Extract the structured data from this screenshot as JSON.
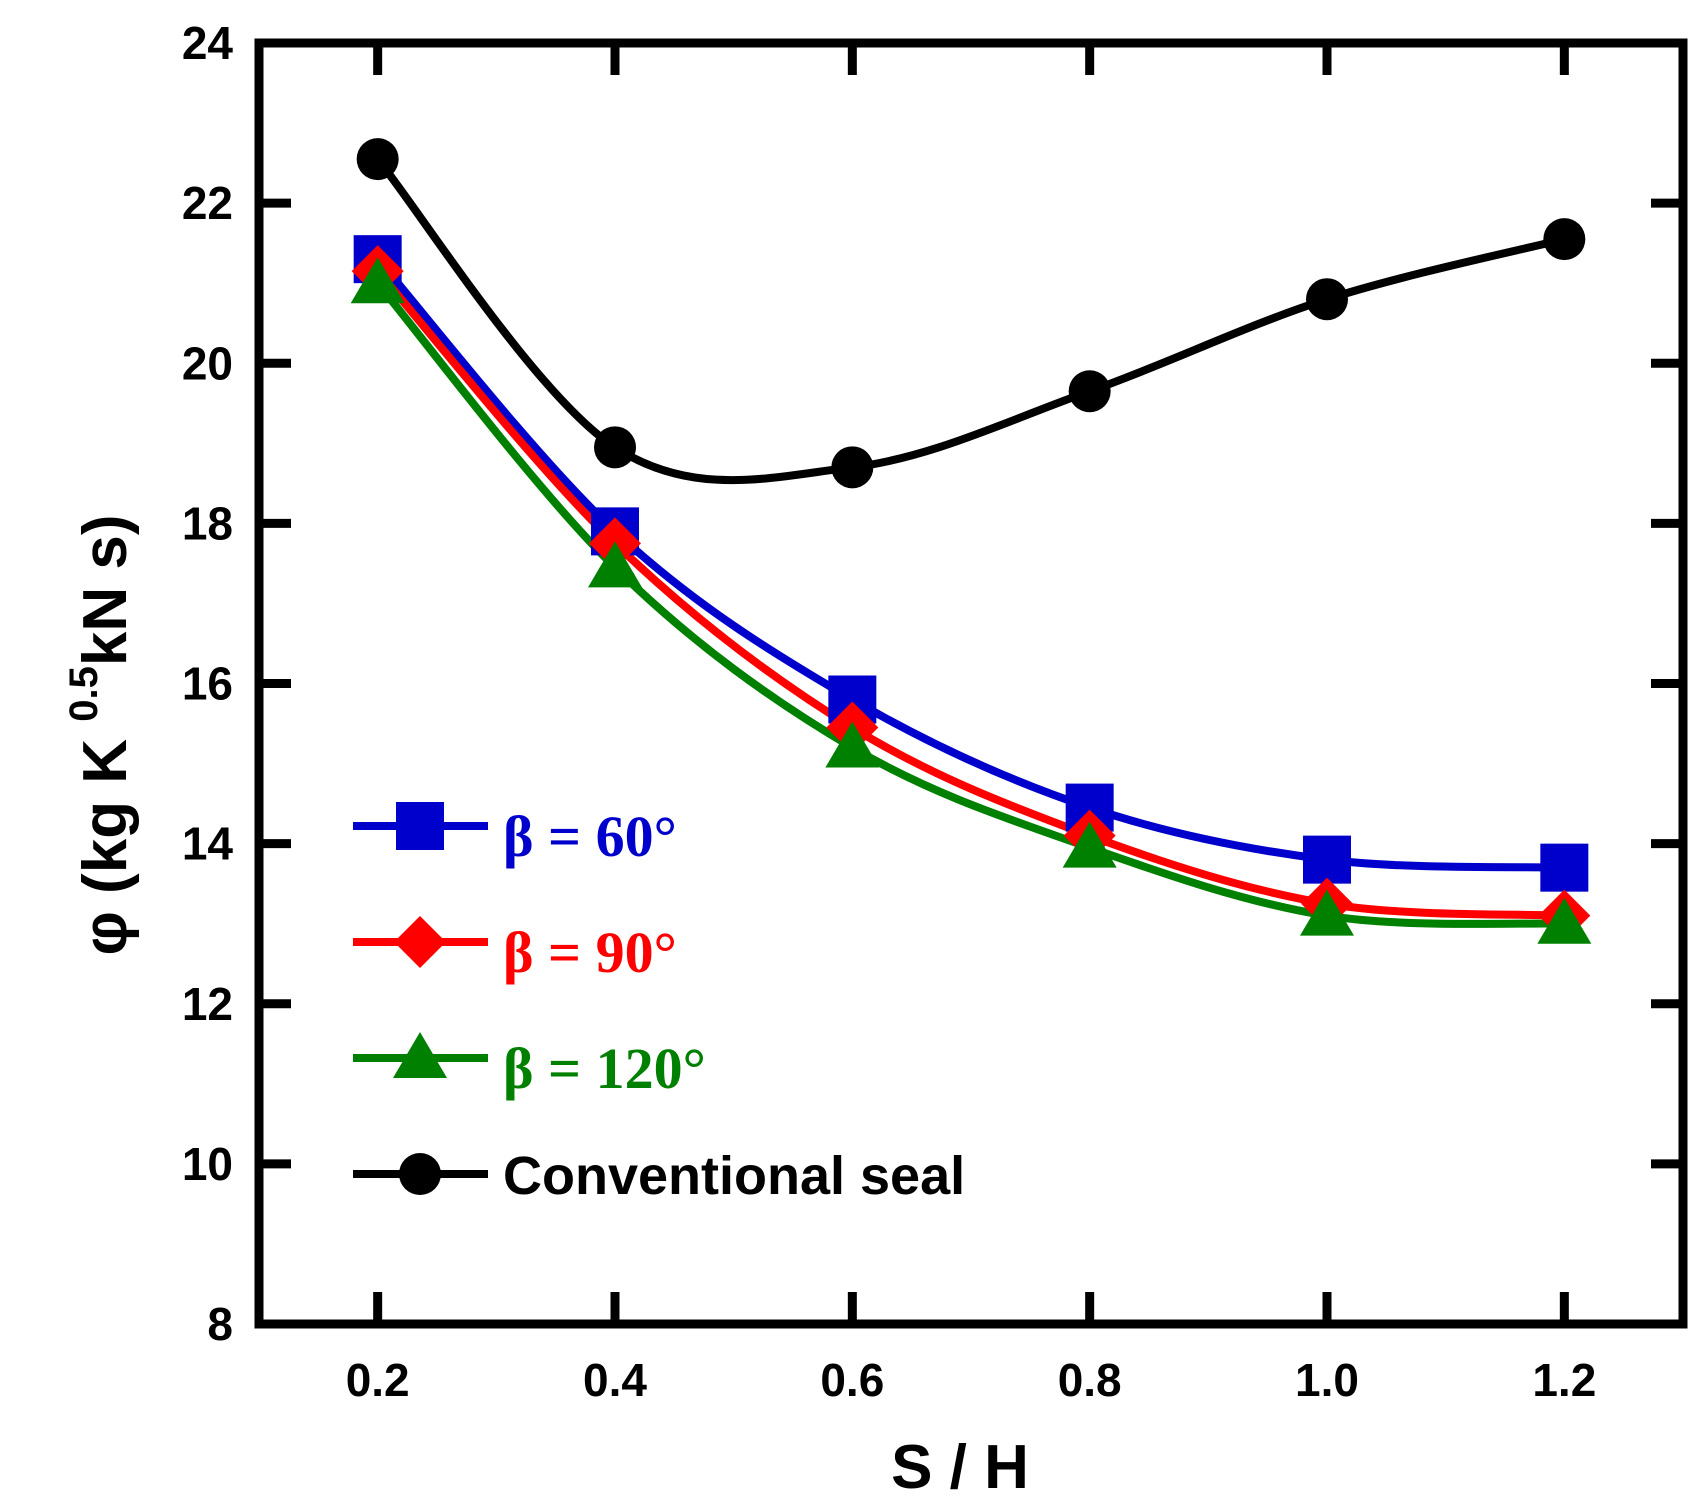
{
  "chart_data": {
    "type": "line",
    "title": "",
    "xlabel": "S / H",
    "ylabel": {
      "prefix": "φ (kg K ",
      "superscript": "0.5",
      "suffix": "kN s)"
    },
    "xlim": [
      0.1,
      1.3
    ],
    "ylim": [
      8,
      24
    ],
    "x_ticks": [
      0.2,
      0.4,
      0.6,
      0.8,
      1.0,
      1.2
    ],
    "x_tick_labels": [
      "0.2",
      "0.4",
      "0.6",
      "0.8",
      "1.0",
      "1.2"
    ],
    "y_ticks": [
      8,
      10,
      12,
      14,
      16,
      18,
      20,
      22,
      24
    ],
    "y_tick_labels": [
      "8",
      "10",
      "12",
      "14",
      "16",
      "18",
      "20",
      "22",
      "24"
    ],
    "x": [
      0.2,
      0.4,
      0.6,
      0.8,
      1.0,
      1.2
    ],
    "series": [
      {
        "name": "β = 60°",
        "color": "#0000cc",
        "marker": "square",
        "values": [
          21.3,
          17.9,
          15.8,
          14.45,
          13.8,
          13.7
        ]
      },
      {
        "name": "β = 90°",
        "color": "#ff0000",
        "marker": "diamond",
        "values": [
          21.15,
          17.75,
          15.45,
          14.1,
          13.25,
          13.1
        ]
      },
      {
        "name": "β = 120°",
        "color": "#008000",
        "marker": "triangle",
        "values": [
          21.0,
          17.45,
          15.2,
          13.95,
          13.1,
          13.0
        ]
      },
      {
        "name": "Conventional seal",
        "color": "#000000",
        "marker": "circle",
        "values": [
          22.55,
          18.95,
          18.7,
          19.65,
          20.8,
          21.55
        ]
      }
    ],
    "grid": false,
    "legend_position": "bottom-left"
  }
}
